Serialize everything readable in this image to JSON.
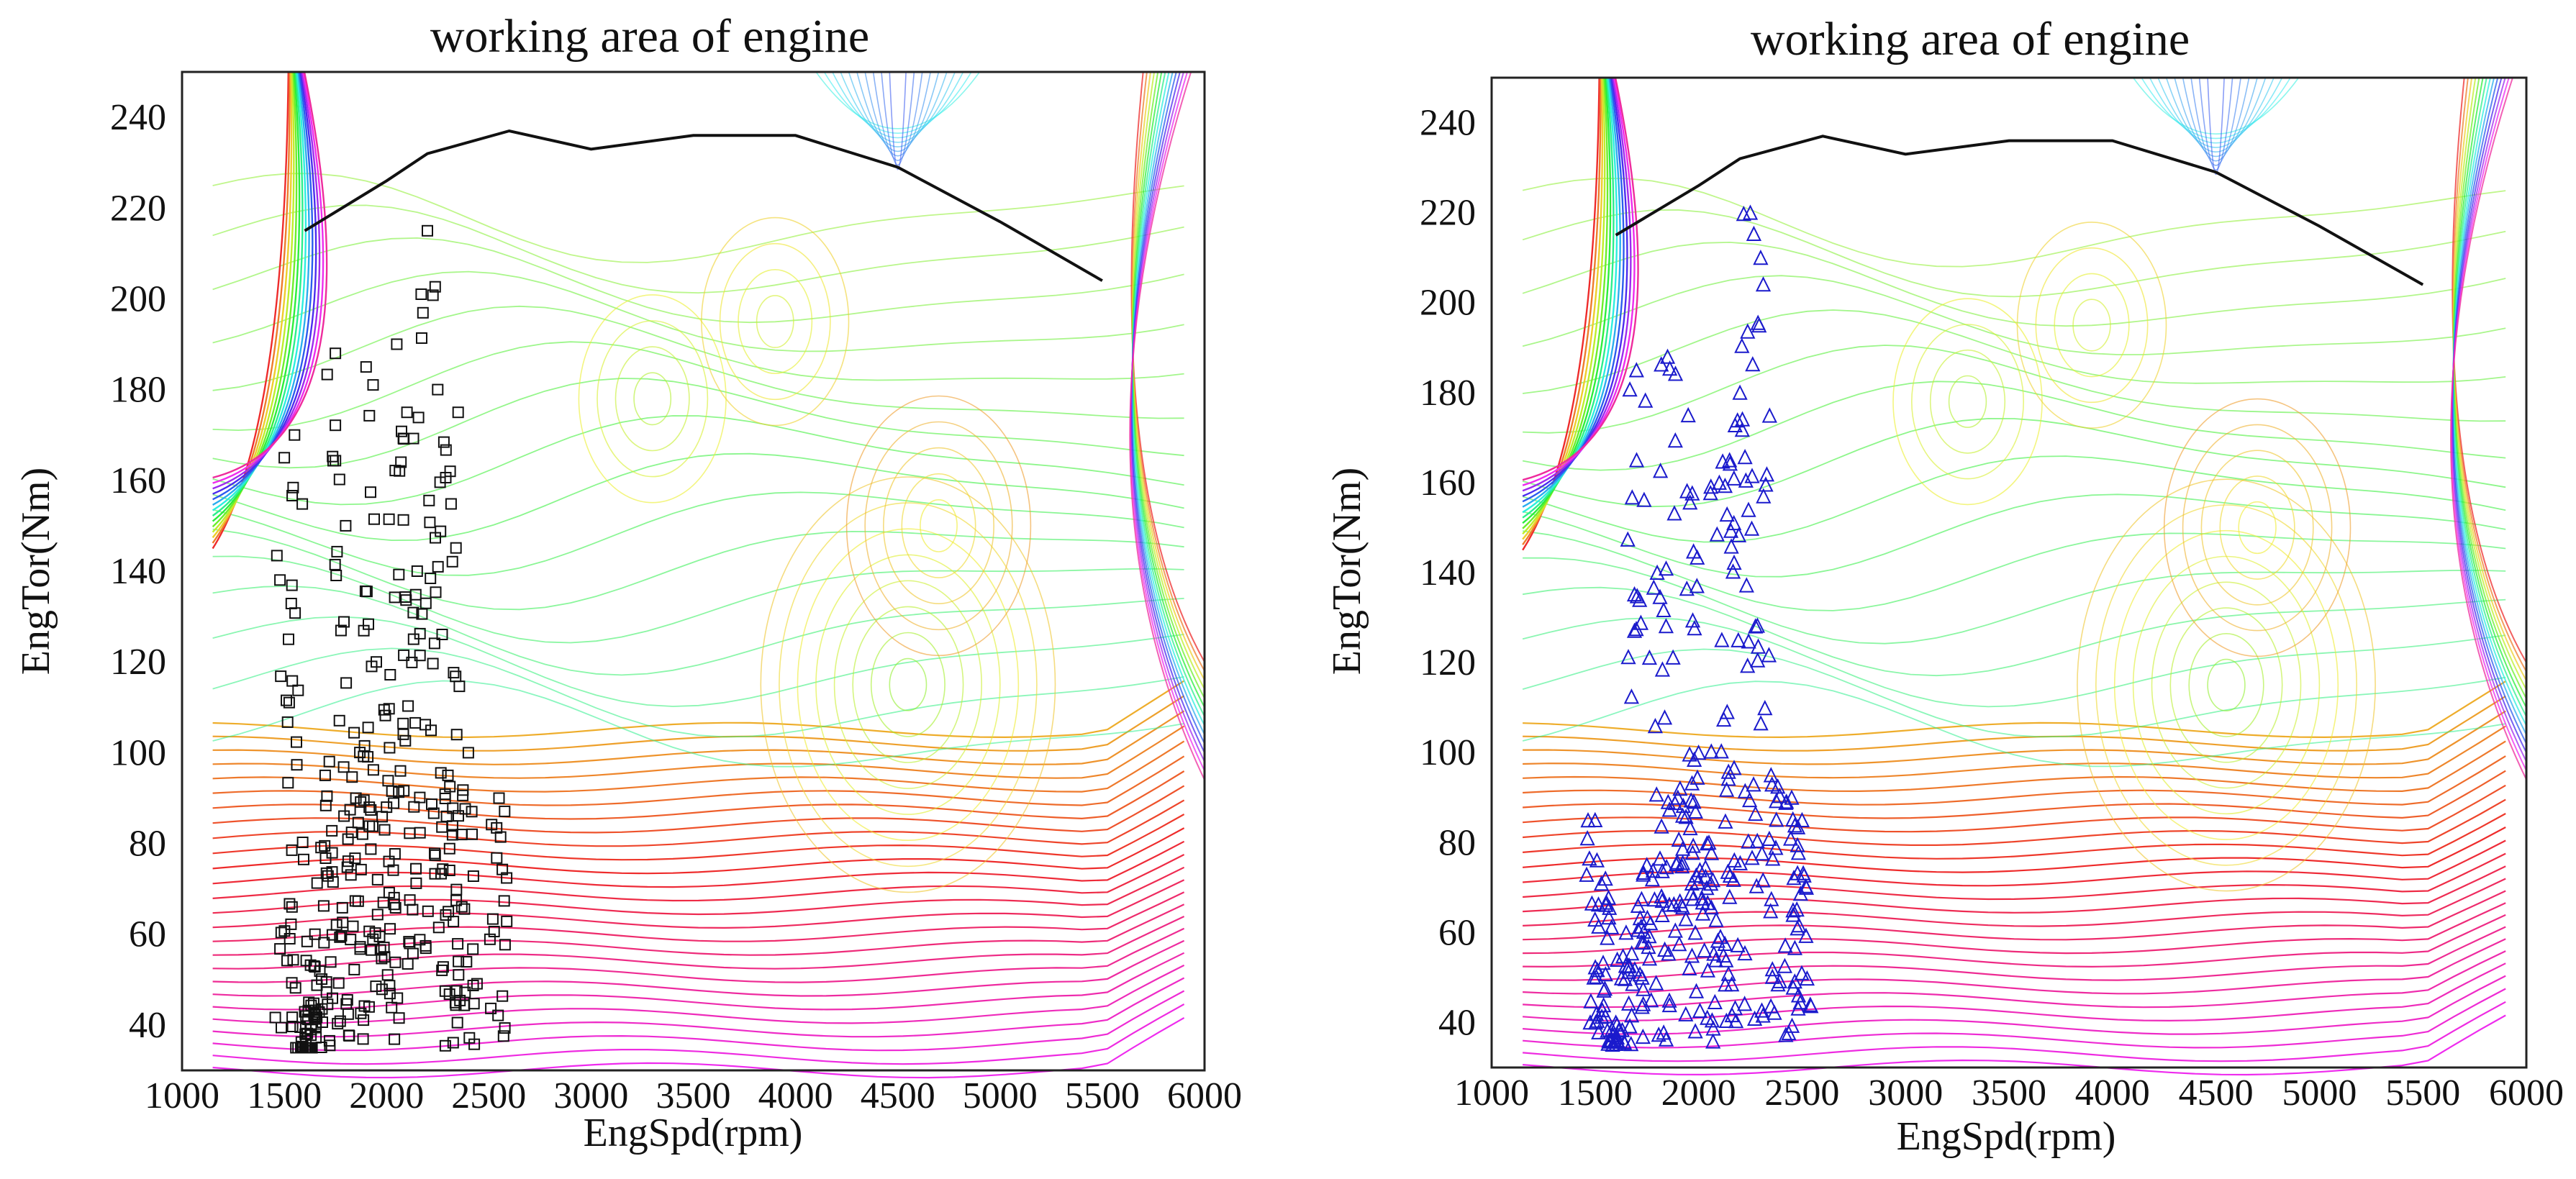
{
  "figure": {
    "style": {
      "contour_colormap": "hsv",
      "frame": "box",
      "grid": false,
      "legend": "none"
    }
  },
  "chart_data": [
    {
      "type": "scatter",
      "title": "working area of engine",
      "xlabel": "EngSpd(rpm)",
      "ylabel": "EngTor(Nm)",
      "xlim": [
        1000,
        6000
      ],
      "ylim": [
        30,
        250
      ],
      "xticks": [
        1000,
        1500,
        2000,
        2500,
        3000,
        3500,
        4000,
        4500,
        5000,
        5500,
        6000
      ],
      "yticks": [
        40,
        60,
        80,
        100,
        120,
        140,
        160,
        180,
        200,
        220,
        240
      ],
      "background": "efficiency contour map (rainbow colored iso-lines)",
      "series": [
        {
          "kind": "line",
          "role": "maximum torque curve",
          "color": "#111111",
          "x": [
            1600,
            2000,
            2200,
            2600,
            3000,
            3500,
            4000,
            4500,
            5000,
            5500
          ],
          "y": [
            215,
            226,
            232,
            237,
            233,
            236,
            236,
            229,
            217,
            204
          ]
        },
        {
          "kind": "scatter",
          "marker": "square",
          "color": "#111111",
          "x": [
            1500,
            1550,
            1600,
            1620,
            1650,
            1700,
            1750,
            1800,
            1850,
            1900,
            1950,
            2000,
            2050,
            2100,
            2150,
            2200,
            2250,
            2300,
            2350,
            2400,
            2550
          ],
          "y": [
            165,
            170,
            35,
            45,
            60,
            95,
            188,
            150,
            90,
            185,
            120,
            88,
            190,
            175,
            140,
            215,
            180,
            95,
            175,
            100,
            90
          ]
        }
      ]
    },
    {
      "type": "scatter",
      "title": "working area of engine",
      "xlabel": "EngSpd(rpm)",
      "ylabel": "EngTor(Nm)",
      "xlim": [
        1000,
        6000
      ],
      "ylim": [
        30,
        250
      ],
      "xticks": [
        1000,
        1500,
        2000,
        2500,
        3000,
        3500,
        4000,
        4500,
        5000,
        5500,
        6000
      ],
      "yticks": [
        40,
        60,
        80,
        100,
        120,
        140,
        160,
        180,
        200,
        220,
        240
      ],
      "background": "efficiency contour map (rainbow colored iso-lines)",
      "series": [
        {
          "kind": "line",
          "role": "maximum torque curve",
          "color": "#111111",
          "x": [
            1600,
            2000,
            2200,
            2600,
            3000,
            3500,
            4000,
            4500,
            5000,
            5500
          ],
          "y": [
            215,
            226,
            232,
            237,
            233,
            236,
            236,
            229,
            217,
            204
          ]
        },
        {
          "kind": "scatter",
          "marker": "triangle",
          "color": "#1a1acc",
          "x": [
            1500,
            1550,
            1600,
            1650,
            1700,
            1750,
            1800,
            1850,
            1900,
            1950,
            2000,
            2050,
            2100,
            2150,
            2200,
            2250,
            2300,
            2350,
            2450,
            2500
          ],
          "y": [
            85,
            72,
            40,
            60,
            185,
            75,
            140,
            188,
            90,
            175,
            100,
            80,
            160,
            165,
            180,
            220,
            210,
            95,
            90,
            85
          ]
        }
      ]
    }
  ]
}
